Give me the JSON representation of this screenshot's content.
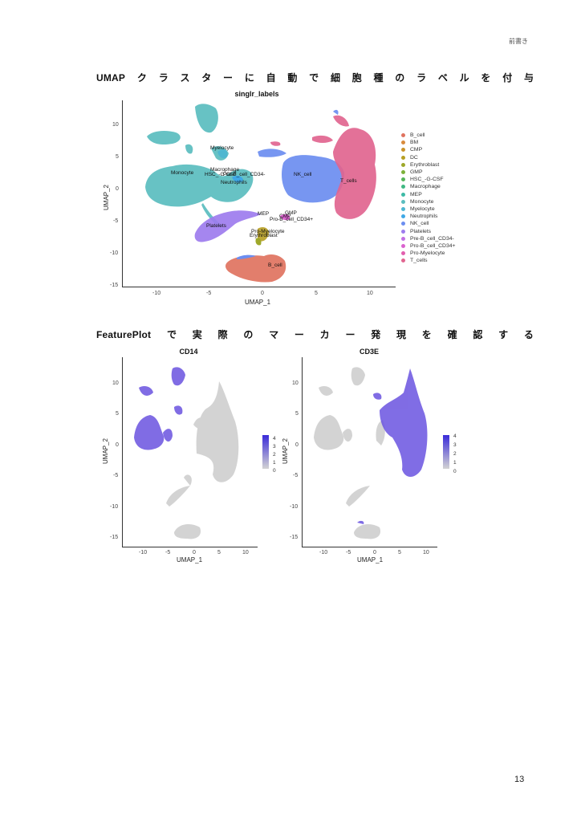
{
  "page": {
    "header_note": "前書き",
    "page_number": "13"
  },
  "section1": {
    "title_lead": "UMAP",
    "title_chars": [
      "ク",
      "ラ",
      "ス",
      "タ",
      "ー",
      "に",
      "自",
      "動",
      "で",
      "細",
      "胞",
      "種",
      "の",
      "ラ",
      "ベ",
      "ル",
      "を",
      "付",
      "与"
    ]
  },
  "section2": {
    "title_lead": "FeaturePlot",
    "title_chars": [
      "で",
      "実",
      "際",
      "の",
      "マ",
      "ー",
      "カ",
      "ー",
      "発",
      "現",
      "を",
      "確",
      "認",
      "す",
      "る"
    ]
  },
  "chart_data": [
    {
      "type": "scatter",
      "title": "singlr_labels",
      "xlabel": "UMAP_1",
      "ylabel": "UMAP_2",
      "xticks": [
        "-10",
        "-5",
        "0",
        "5",
        "10"
      ],
      "yticks": [
        "10",
        "5",
        "0",
        "-5",
        "-10",
        "-15"
      ],
      "xlim": [
        -13,
        12
      ],
      "ylim": [
        -15.5,
        13
      ],
      "grid": false,
      "legend_position": "right",
      "legend": [
        {
          "label": "B_cell",
          "color": "#E0735F"
        },
        {
          "label": "BM",
          "color": "#D98A3C"
        },
        {
          "label": "CMP",
          "color": "#C9932B"
        },
        {
          "label": "DC",
          "color": "#B79F22"
        },
        {
          "label": "Erythroblast",
          "color": "#9EA82A"
        },
        {
          "label": "GMP",
          "color": "#7CB13A"
        },
        {
          "label": "HSC_-G-CSF",
          "color": "#55B55A"
        },
        {
          "label": "Macrophage",
          "color": "#3FB883"
        },
        {
          "label": "MEP",
          "color": "#3DBAA6"
        },
        {
          "label": "Monocyte",
          "color": "#5BBDBF"
        },
        {
          "label": "Myelocyte",
          "color": "#4DB6D2"
        },
        {
          "label": "Neutrophils",
          "color": "#3FA8E6"
        },
        {
          "label": "NK_cell",
          "color": "#6C8EF0"
        },
        {
          "label": "Platelets",
          "color": "#9D7CEE"
        },
        {
          "label": "Pre-B_cell_CD34-",
          "color": "#C26FE4"
        },
        {
          "label": "Pro-B_cell_CD34+",
          "color": "#DA63CF"
        },
        {
          "label": "Pro-Myelocyte",
          "color": "#E25FAE"
        },
        {
          "label": "T_cells",
          "color": "#E16590"
        }
      ],
      "cluster_labels": [
        {
          "label": "Myelocyte",
          "x": -3.8,
          "y": 6.2
        },
        {
          "label": "Monocyte",
          "x": -7.2,
          "y": 2.5
        },
        {
          "label": "Macrophage",
          "x": -3.5,
          "y": 2.8
        },
        {
          "label": "HSC_-G-CSF",
          "x": -4.3,
          "y": 2.1
        },
        {
          "label": "Pre-B_cell_CD34-",
          "x": -2.5,
          "y": 2.1
        },
        {
          "label": "Neutrophils",
          "x": -2.8,
          "y": 0.8
        },
        {
          "label": "NK_cell",
          "x": 3.8,
          "y": 2.2
        },
        {
          "label": "T_cells",
          "x": 8.0,
          "y": 0.9
        },
        {
          "label": "MEP",
          "x": 0.0,
          "y": -4.0
        },
        {
          "label": "CMP",
          "x": 2.0,
          "y": -4.2
        },
        {
          "label": "GMP",
          "x": 2.5,
          "y": -4.0
        },
        {
          "label": "Pro-B_cell_CD34+",
          "x": 2.5,
          "y": -4.9
        },
        {
          "label": "Platelets",
          "x": -4.5,
          "y": -6.0
        },
        {
          "label": "Pro-Myelocyte",
          "x": 0.3,
          "y": -6.8
        },
        {
          "label": "Erythroblast",
          "x": 0.0,
          "y": -7.3
        },
        {
          "label": "B_cell",
          "x": 1.3,
          "y": -12.3
        }
      ]
    },
    {
      "type": "scatter",
      "title": "CD14",
      "xlabel": "UMAP_1",
      "ylabel": "UMAP_2",
      "xticks": [
        "-10",
        "-5",
        "0",
        "5",
        "10"
      ],
      "yticks": [
        "10",
        "5",
        "0",
        "-5",
        "-10",
        "-15"
      ],
      "colorbar": {
        "ticks": [
          "4",
          "3",
          "2",
          "1",
          "0"
        ],
        "low": "#D3D3D3",
        "high": "#3A2BD9",
        "range": [
          0,
          4.5
        ]
      },
      "high_expression_regions": [
        "Monocyte",
        "Myelocyte",
        "Macrophage"
      ]
    },
    {
      "type": "scatter",
      "title": "CD3E",
      "xlabel": "UMAP_1",
      "ylabel": "UMAP_2",
      "xticks": [
        "-10",
        "-5",
        "0",
        "5",
        "10"
      ],
      "yticks": [
        "10",
        "5",
        "0",
        "-5",
        "-10",
        "-15"
      ],
      "colorbar": {
        "ticks": [
          "4",
          "3",
          "2",
          "1",
          "0"
        ],
        "low": "#D3D3D3",
        "high": "#3A2BD9",
        "range": [
          0,
          4
        ]
      },
      "high_expression_regions": [
        "T_cells",
        "NK_cell"
      ]
    }
  ]
}
